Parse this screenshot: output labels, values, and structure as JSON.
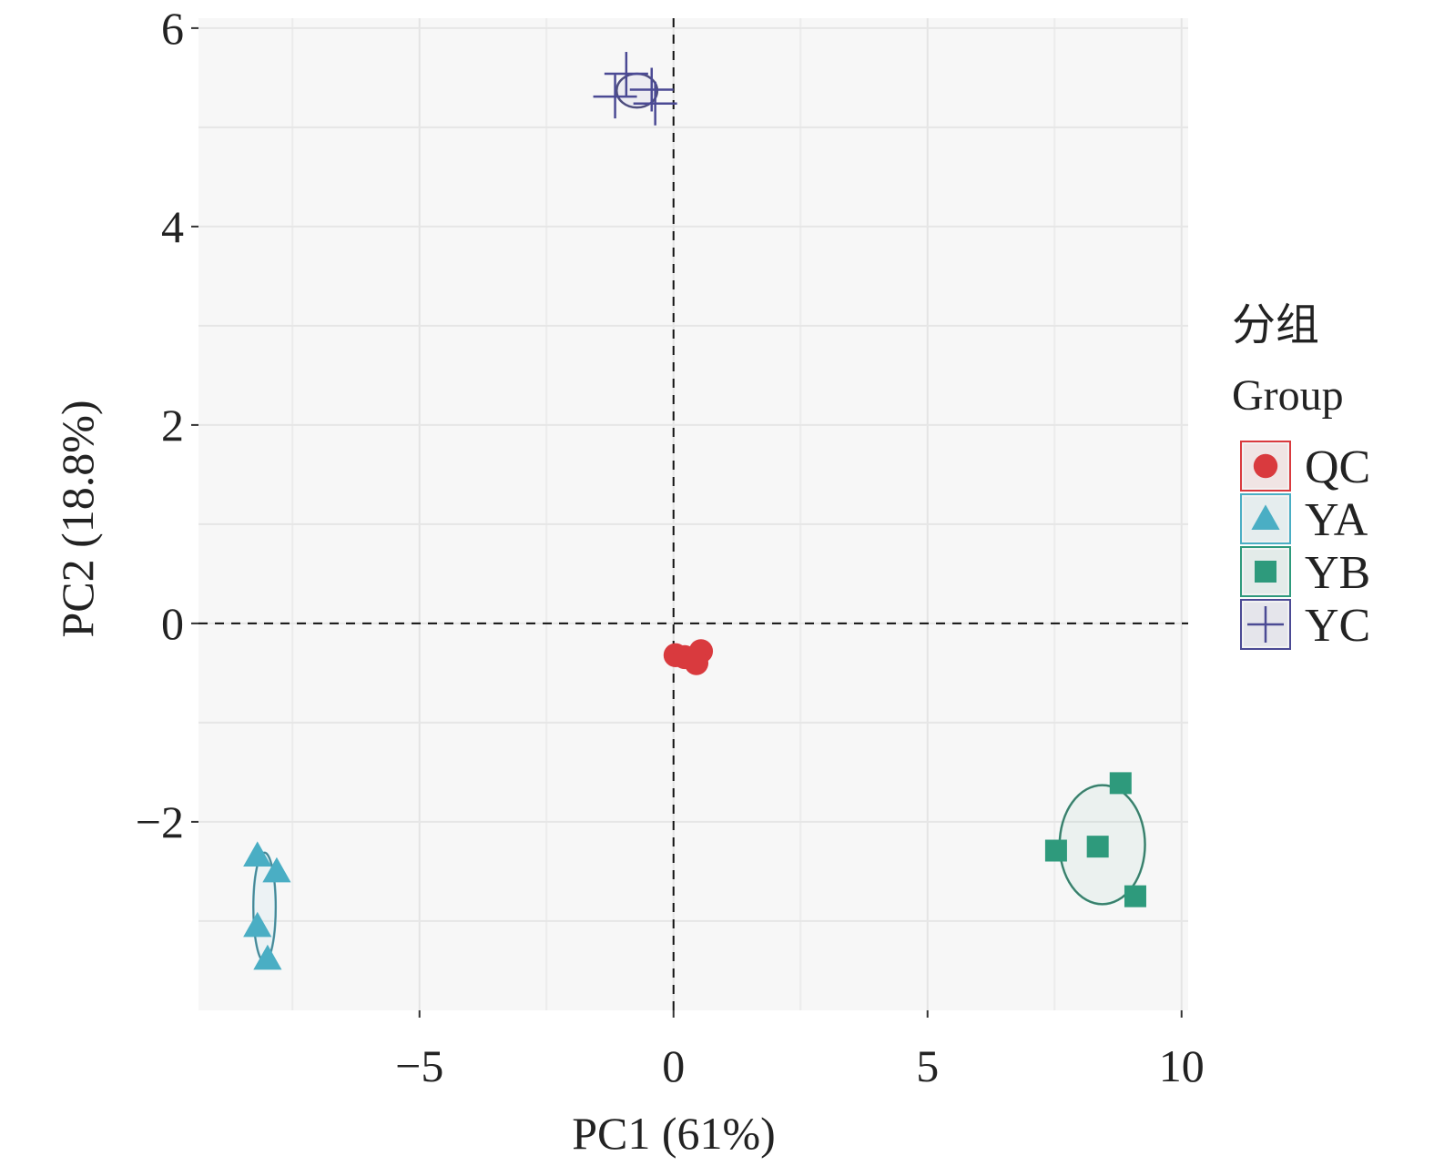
{
  "chart_data": {
    "type": "scatter",
    "title": "",
    "xlabel": "PC1 (61%)",
    "ylabel": "PC2 (18.8%)",
    "xlim": [
      -9.35,
      10.13
    ],
    "ylim": [
      -3.9,
      6.1
    ],
    "xticks": [
      -5,
      0,
      5,
      10
    ],
    "xtick_labels": [
      "−5",
      "0",
      "5",
      "10"
    ],
    "yticks": [
      -2,
      0,
      2,
      4,
      6
    ],
    "ytick_labels": [
      "−2",
      "0",
      "2",
      "4",
      "6"
    ],
    "grid": true,
    "reference_lines": {
      "x": 0,
      "y": 0,
      "style": "dashed"
    },
    "legend": {
      "title_line1": "分组",
      "title_line2": "Group",
      "placement": "right"
    },
    "series": [
      {
        "name": "QC",
        "marker": "circle",
        "color": "#d93a3e",
        "x": [
          0.04,
          0.22,
          0.54,
          0.45
        ],
        "y": [
          -0.32,
          -0.34,
          -0.28,
          -0.4
        ],
        "ellipse": null
      },
      {
        "name": "YA",
        "marker": "triangle",
        "color": "#4aaec4",
        "x": [
          -8.19,
          -7.81,
          -8.19,
          -7.99
        ],
        "y": [
          -2.34,
          -2.5,
          -3.05,
          -3.38
        ],
        "ellipse": {
          "cx": -8.05,
          "cy": -2.86,
          "rx": 0.22,
          "ry": 0.55
        }
      },
      {
        "name": "YB",
        "marker": "square",
        "color": "#2e9a7c",
        "x": [
          7.53,
          8.35,
          8.8,
          9.09
        ],
        "y": [
          -2.29,
          -2.25,
          -1.61,
          -2.75
        ],
        "ellipse": {
          "cx": 8.44,
          "cy": -2.23,
          "rx": 0.84,
          "ry": 0.6
        }
      },
      {
        "name": "YC",
        "marker": "plus",
        "color": "#4b4a94",
        "x": [
          -0.93,
          -1.15,
          -0.43,
          -0.36
        ],
        "y": [
          5.54,
          5.31,
          5.38,
          5.24
        ],
        "ellipse": {
          "cx": -0.72,
          "cy": 5.37,
          "rx": 0.4,
          "ry": 0.17
        }
      }
    ]
  }
}
